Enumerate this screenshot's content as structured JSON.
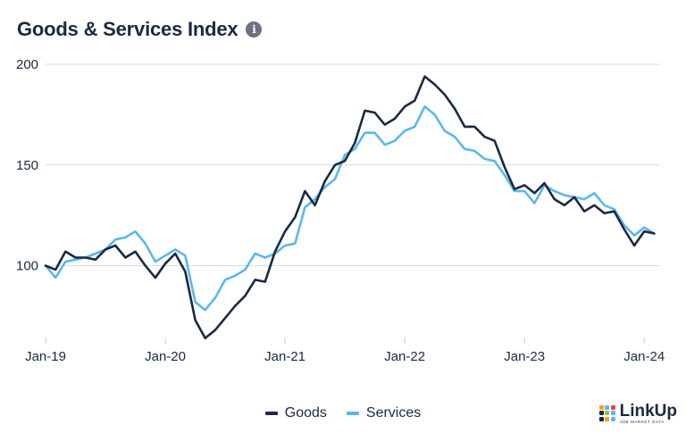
{
  "header": {
    "title": "Goods & Services Index",
    "info_icon": "info-icon"
  },
  "chart_data": {
    "type": "line",
    "title": "Goods & Services Index",
    "xlabel": "",
    "ylabel": "",
    "x_start": "2019-01",
    "x_tick_labels": [
      "Jan-19",
      "Jan-20",
      "Jan-21",
      "Jan-22",
      "Jan-23",
      "Jan-24"
    ],
    "x_ticks": [
      "2019-01",
      "2020-01",
      "2021-01",
      "2022-01",
      "2023-01",
      "2024-01"
    ],
    "y_ticks": [
      100,
      150,
      200
    ],
    "ylim": [
      67,
      204
    ],
    "grid": true,
    "legend": "bottom-center",
    "series": [
      {
        "name": "Goods",
        "color": "#1b2a41",
        "values": [
          100,
          98,
          107,
          104,
          104,
          103,
          108,
          110,
          104,
          107,
          100,
          94,
          101,
          106,
          97,
          73,
          64,
          68,
          74,
          80,
          85,
          93,
          92,
          107,
          117,
          124,
          137,
          130,
          142,
          150,
          152,
          161,
          177,
          176,
          170,
          173,
          179,
          182,
          194,
          190,
          185,
          178,
          169,
          169,
          164,
          162,
          149,
          138,
          140,
          136,
          141,
          133,
          130,
          134,
          127,
          130,
          126,
          127,
          118,
          110,
          117,
          116
        ]
      },
      {
        "name": "Services",
        "color": "#5bb8ec",
        "values": [
          100,
          94,
          102,
          103,
          104,
          106,
          108,
          113,
          114,
          117,
          111,
          102,
          105,
          108,
          105,
          82,
          78,
          84,
          93,
          95,
          98,
          106,
          104,
          106,
          110,
          111,
          129,
          133,
          139,
          143,
          155,
          158,
          166,
          166,
          160,
          162,
          167,
          169,
          179,
          175,
          167,
          164,
          158,
          157,
          153,
          152,
          145,
          137,
          137,
          131,
          140,
          137,
          135,
          134,
          133,
          136,
          130,
          128,
          120,
          115,
          119,
          116
        ]
      }
    ]
  },
  "legend": {
    "goods_label": "Goods",
    "services_label": "Services"
  },
  "brand": {
    "name": "LinkUp",
    "tagline": "JOB MARKET DATA",
    "logo_colors": [
      "#f2a31b",
      "#5bb8ec",
      "#e0483e",
      "#1b2a41",
      "#8cc63f",
      "#5bb8ec",
      "#1b2a41",
      "#f2a31b",
      "#5bb8ec"
    ]
  }
}
